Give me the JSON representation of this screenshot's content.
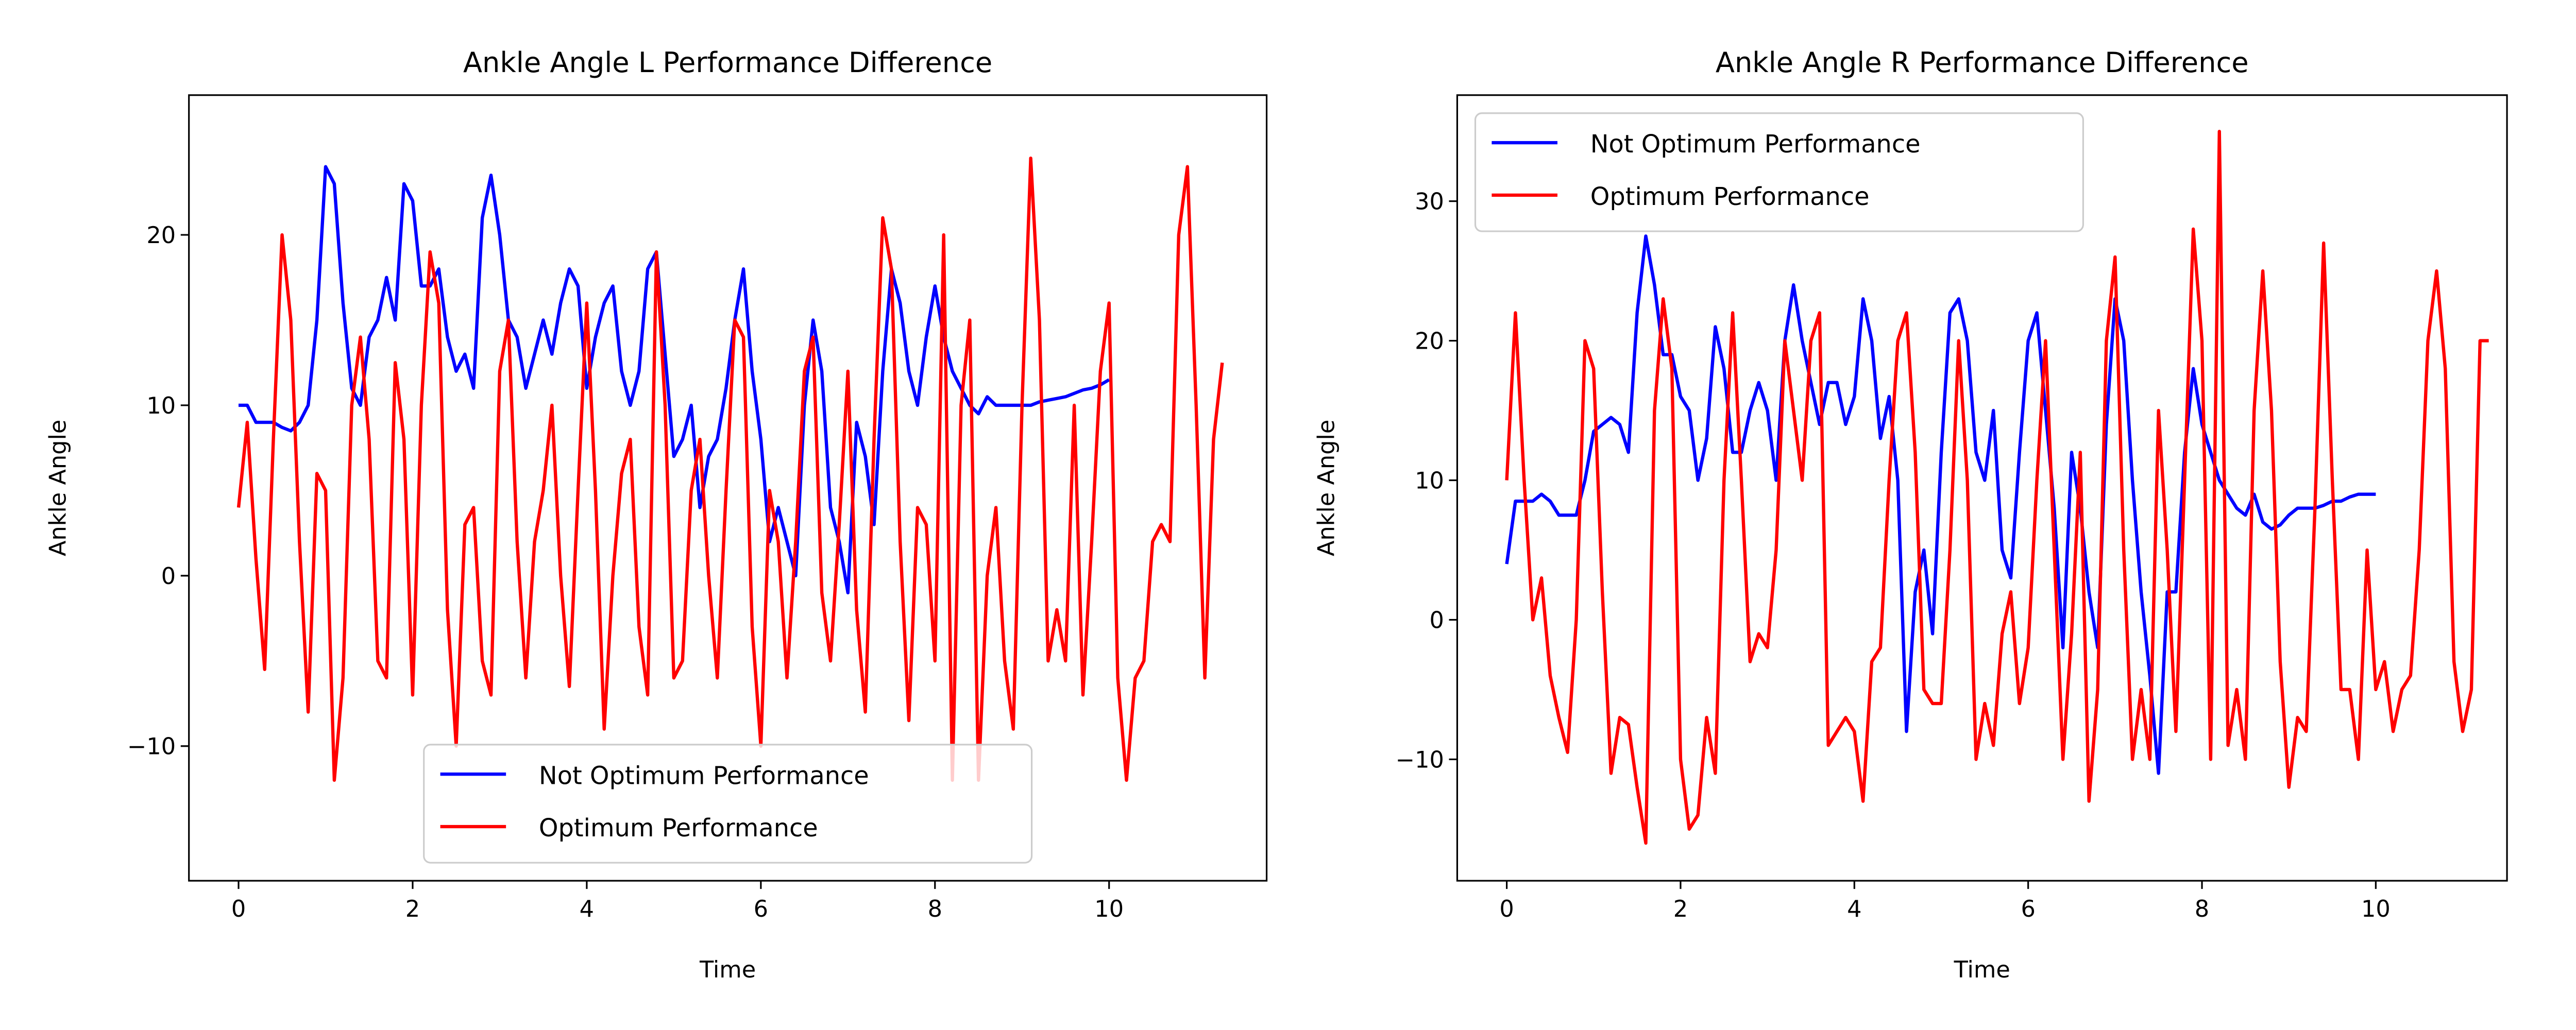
{
  "chart_data": [
    {
      "type": "line",
      "title": "Ankle Angle L Performance Difference",
      "xlabel": "Time",
      "ylabel": "Ankle Angle",
      "xlim": [
        -0.57,
        11.81
      ],
      "ylim": [
        -17.9,
        28.2
      ],
      "xticks": [
        0,
        2,
        4,
        6,
        8,
        10
      ],
      "yticks": [
        {
          "value": -10,
          "label": "−10"
        },
        0,
        10,
        20
      ],
      "legend": "lower center",
      "x": [
        0,
        0.1,
        0.2,
        0.3,
        0.4,
        0.5,
        0.6,
        0.7,
        0.8,
        0.9,
        1.0,
        1.1,
        1.2,
        1.3,
        1.4,
        1.5,
        1.6,
        1.7,
        1.8,
        1.9,
        2.0,
        2.1,
        2.2,
        2.3,
        2.4,
        2.5,
        2.6,
        2.7,
        2.8,
        2.9,
        3.0,
        3.1,
        3.2,
        3.3,
        3.4,
        3.5,
        3.6,
        3.7,
        3.8,
        3.9,
        4.0,
        4.1,
        4.2,
        4.3,
        4.4,
        4.5,
        4.6,
        4.7,
        4.8,
        4.9,
        5.0,
        5.1,
        5.2,
        5.3,
        5.4,
        5.5,
        5.6,
        5.7,
        5.8,
        5.9,
        6.0,
        6.1,
        6.2,
        6.3,
        6.4,
        6.5,
        6.6,
        6.7,
        6.8,
        6.9,
        7.0,
        7.1,
        7.2,
        7.3,
        7.4,
        7.5,
        7.6,
        7.7,
        7.8,
        7.9,
        8.0,
        8.1,
        8.2,
        8.3,
        8.4,
        8.5,
        8.6,
        8.7,
        8.8,
        8.9,
        9.0,
        9.1,
        9.2,
        9.3,
        9.4,
        9.5,
        9.6,
        9.7,
        9.8,
        9.9,
        10.0,
        10.1,
        10.2,
        10.3,
        10.4,
        10.5,
        10.6,
        10.7,
        10.8,
        10.9,
        11.0,
        11.1,
        11.2,
        11.3
      ],
      "series": [
        {
          "name": "Not Optimum Performance",
          "color": "#0000ff",
          "values": [
            10,
            10,
            9,
            9,
            9,
            8.7,
            8.5,
            9,
            10,
            15,
            24,
            23,
            16,
            11,
            10,
            14,
            15,
            17.5,
            15,
            23,
            22,
            17,
            17,
            18,
            14,
            12,
            13,
            11,
            21,
            23.5,
            20,
            15,
            14,
            11,
            13,
            15,
            13,
            16,
            18,
            17,
            11,
            14,
            16,
            17,
            12,
            10,
            12,
            18,
            19,
            13,
            7,
            8,
            10,
            4,
            7,
            8,
            11,
            15,
            18,
            12,
            8,
            2,
            4,
            2,
            0,
            10,
            15,
            12,
            4,
            2,
            -1,
            9,
            7,
            3,
            12,
            18,
            16,
            12,
            10,
            14,
            17,
            14,
            12,
            11,
            10,
            9.5,
            10.5,
            10,
            10,
            10,
            10,
            10,
            10.2,
            10.3,
            10.4,
            10.5,
            10.7,
            10.9,
            11,
            11.2,
            11.5,
            null,
            null,
            null,
            null,
            null,
            null,
            null,
            null,
            null,
            null,
            null,
            null,
            null
          ]
        },
        {
          "name": "Optimum Performance",
          "color": "#ff0000",
          "values": [
            4,
            9,
            1,
            -5.5,
            8,
            20,
            15,
            2,
            -8,
            6,
            5,
            -12,
            -6,
            10,
            14,
            8,
            -5,
            -6,
            12.5,
            8,
            -7,
            10,
            19,
            16,
            -2,
            -10,
            3,
            4,
            -5,
            -7,
            12,
            15,
            2,
            -6,
            2,
            5,
            10,
            0,
            -6.5,
            5,
            16,
            5,
            -9,
            0,
            6,
            8,
            -3,
            -7,
            19,
            10,
            -6,
            -5,
            5,
            8,
            0,
            -6,
            5,
            15,
            14,
            -3,
            -10,
            5,
            2,
            -6,
            2,
            12,
            14,
            -1,
            -5,
            3,
            12,
            -2,
            -8,
            8,
            21,
            18,
            2,
            -8.5,
            4,
            3,
            -5,
            20,
            -12,
            10,
            15,
            -12,
            0,
            4,
            -5,
            -9,
            10,
            24.5,
            15,
            -5,
            -2,
            -5,
            10,
            -7,
            2,
            12,
            16,
            -6,
            -12,
            -6,
            -5,
            2,
            3,
            2,
            20,
            24,
            10,
            -6,
            8,
            12.5
          ]
        }
      ]
    },
    {
      "type": "line",
      "title": "Ankle Angle R Performance Difference",
      "xlabel": "Time",
      "ylabel": "Ankle Angle",
      "xlim": [
        -0.57,
        11.51
      ],
      "ylim": [
        -18.7,
        37.6
      ],
      "xticks": [
        0,
        2,
        4,
        6,
        8,
        10
      ],
      "yticks": [
        {
          "value": -10,
          "label": "−10"
        },
        0,
        10,
        20,
        30
      ],
      "legend": "upper left",
      "x": [
        0,
        0.1,
        0.2,
        0.3,
        0.4,
        0.5,
        0.6,
        0.7,
        0.8,
        0.9,
        1.0,
        1.1,
        1.2,
        1.3,
        1.4,
        1.5,
        1.6,
        1.7,
        1.8,
        1.9,
        2.0,
        2.1,
        2.2,
        2.3,
        2.4,
        2.5,
        2.6,
        2.7,
        2.8,
        2.9,
        3.0,
        3.1,
        3.2,
        3.3,
        3.4,
        3.5,
        3.6,
        3.7,
        3.8,
        3.9,
        4.0,
        4.1,
        4.2,
        4.3,
        4.4,
        4.5,
        4.6,
        4.7,
        4.8,
        4.9,
        5.0,
        5.1,
        5.2,
        5.3,
        5.4,
        5.5,
        5.6,
        5.7,
        5.8,
        5.9,
        6.0,
        6.1,
        6.2,
        6.3,
        6.4,
        6.5,
        6.6,
        6.7,
        6.8,
        6.9,
        7.0,
        7.1,
        7.2,
        7.3,
        7.4,
        7.5,
        7.6,
        7.7,
        7.8,
        7.9,
        8.0,
        8.1,
        8.2,
        8.3,
        8.4,
        8.5,
        8.6,
        8.7,
        8.8,
        8.9,
        9.0,
        9.1,
        9.2,
        9.3,
        9.4,
        9.5,
        9.6,
        9.7,
        9.8,
        9.9,
        10.0,
        10.1,
        10.2,
        10.3,
        10.4,
        10.5,
        10.6,
        10.7,
        10.8,
        10.9,
        11.0,
        11.1,
        11.2,
        11.3
      ],
      "series": [
        {
          "name": "Not Optimum Performance",
          "color": "#0000ff",
          "values": [
            4,
            8.5,
            8.5,
            8.5,
            9,
            8.5,
            7.5,
            7.5,
            7.5,
            10,
            13.5,
            14,
            14.5,
            14,
            12,
            22,
            27.5,
            24,
            19,
            19,
            16,
            15,
            10,
            13,
            21,
            18,
            12,
            12,
            15,
            17,
            15,
            10,
            20,
            24,
            20,
            17,
            14,
            17,
            17,
            14,
            16,
            23,
            20,
            13,
            16,
            10,
            -8,
            2,
            5,
            -1,
            12,
            22,
            23,
            20,
            12,
            10,
            15,
            5,
            3,
            12,
            20,
            22,
            15,
            8,
            -2,
            12,
            8,
            2,
            -2,
            14,
            23,
            20,
            10,
            2,
            -4,
            -11,
            2,
            2,
            12,
            18,
            14,
            12,
            10,
            9,
            8,
            7.5,
            9,
            7,
            6.5,
            6.8,
            7.5,
            8,
            8,
            8,
            8.2,
            8.5,
            8.5,
            8.8,
            9,
            9,
            9,
            null,
            null,
            null,
            null,
            null,
            null,
            null,
            null,
            null,
            null,
            null,
            null,
            null
          ]
        },
        {
          "name": "Optimum Performance",
          "color": "#ff0000",
          "values": [
            10,
            22,
            10,
            0,
            3,
            -4,
            -7,
            -9.5,
            0,
            20,
            18,
            2,
            -11,
            -7,
            -7.5,
            -12,
            -16,
            15,
            23,
            18,
            -10,
            -15,
            -14,
            -7,
            -11,
            10,
            22,
            10,
            -3,
            -1,
            -2,
            5,
            20,
            15,
            10,
            20,
            22,
            -9,
            -8,
            -7,
            -8,
            -13,
            -3,
            -2,
            10,
            20,
            22,
            12,
            -5,
            -6,
            -6,
            5,
            20,
            10,
            -10,
            -6,
            -9,
            -1,
            2,
            -6,
            -2,
            10,
            20,
            5,
            -10,
            -1,
            12,
            -13,
            -5,
            20,
            26,
            5,
            -10,
            -5,
            -10,
            15,
            5,
            -8,
            10,
            28,
            20,
            -10,
            35,
            -9,
            -5,
            -10,
            15,
            25,
            15,
            -3,
            -12,
            -7,
            -8,
            8,
            27,
            10,
            -5,
            -5,
            -10,
            5,
            -5,
            -3,
            -8,
            -5,
            -4,
            5,
            20,
            25,
            18,
            -3,
            -8,
            -5,
            20,
            20
          ]
        }
      ]
    }
  ]
}
